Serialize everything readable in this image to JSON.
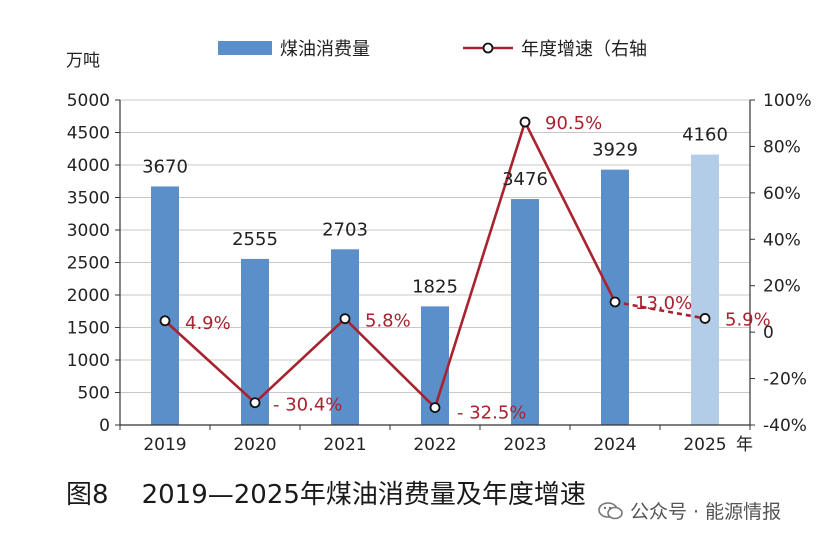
{
  "chart_data": {
    "type": "bar",
    "left_unit": "万吨",
    "x_unit": "年",
    "categories": [
      "2019",
      "2020",
      "2021",
      "2022",
      "2023",
      "2024",
      "2025"
    ],
    "series": [
      {
        "name": "煤油消费量",
        "type": "bar",
        "axis": "left",
        "values": [
          3670,
          2555,
          2703,
          1825,
          3476,
          3929,
          4160
        ],
        "labels": [
          "3670",
          "2555",
          "2703",
          "1825",
          "3476",
          "3929",
          "4160"
        ],
        "color": "#5b8fc9",
        "forecast_color": "#b3cde8"
      },
      {
        "name": "年度增速（右轴",
        "type": "line",
        "axis": "right",
        "values": [
          4.9,
          -30.4,
          5.8,
          -32.5,
          90.5,
          13.0,
          5.9
        ],
        "labels": [
          "4.9%",
          "- 30.4%",
          "5.8%",
          "- 32.5%",
          "90.5%",
          "13.0%",
          "5.9%"
        ],
        "color": "#a8222f"
      }
    ],
    "y_left": {
      "min": 0,
      "max": 5000,
      "ticks": [
        0,
        500,
        1000,
        1500,
        2000,
        2500,
        3000,
        3500,
        4000,
        4500,
        5000
      ]
    },
    "y_right": {
      "min": -40,
      "max": 100,
      "ticks": [
        "-40%",
        "-20%",
        "0",
        "20%",
        "40%",
        "60%",
        "80%",
        "100%"
      ]
    },
    "forecast_category": "2025",
    "grid": true,
    "legend_placement": "top"
  },
  "caption": "图8    2019—2025年煤油消费量及年度增速",
  "watermark": "公众号 · 能源情报"
}
